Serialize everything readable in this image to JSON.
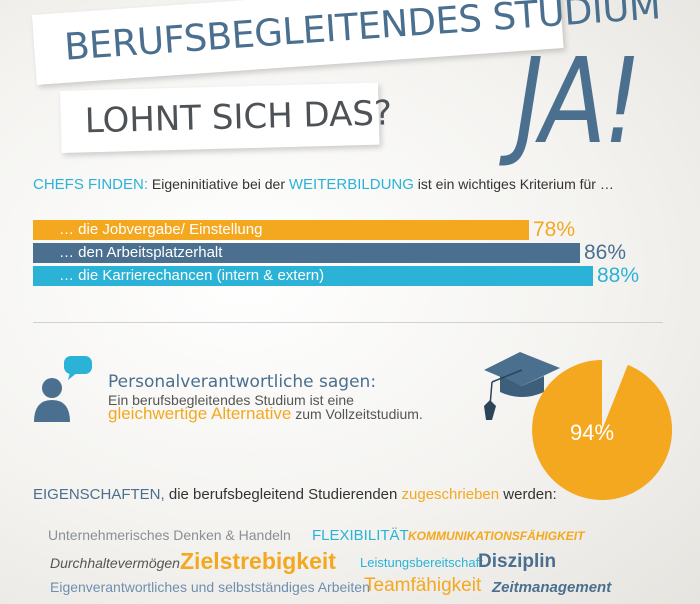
{
  "header": {
    "title_line1": "BERUFSBEGLEITENDES STUDIUM",
    "title_line2": "LOHNT SICH DAS?",
    "answer": "JA!"
  },
  "chefs": {
    "label": "CHEFS FINDEN:",
    "text1": " Eigeninitiative bei der ",
    "highlight": "WEITERBILDUNG",
    "text2": " ist ein wichtiges Kriterium für …"
  },
  "bars": [
    {
      "label": "… die Jobvergabe/ Einstellung",
      "value": 78,
      "value_label": "78%",
      "color": "#f4a81f"
    },
    {
      "label": "… den Arbeitsplatzerhalt",
      "value": 86,
      "value_label": "86%",
      "color": "#4a6f8f"
    },
    {
      "label": "… die Karrierechancen (intern & extern)",
      "value": 88,
      "value_label": "88%",
      "color": "#2ab3d6"
    }
  ],
  "statement": {
    "line1": "Personalverantwortliche sagen:",
    "line2": "Ein berufsbegleitendes Studium ist eine",
    "highlight": "gleichwertige Alternative",
    "line3": " zum Vollzeitstudium.",
    "pie_value": 94,
    "pie_label": "94%"
  },
  "eigenschaften": {
    "label": "EIGENSCHAFTEN,",
    "text1": " die berufsbegleitend Studierenden ",
    "highlight": "zugeschrieben",
    "text2": " werden:"
  },
  "words": [
    "Unternehmerisches Denken & Handeln",
    "FLEXIBILITÄT",
    "KOMMUNIKATIONSFÄHIGKEIT",
    "Durchhaltevermögen",
    "Zielstrebigkeit",
    "Leistungsbereitschaft",
    "Disziplin",
    "Eigenverantwortliches und selbstständiges Arbeiten",
    "Teamfähigkeit",
    "Zeitmanagement"
  ],
  "colors": {
    "orange": "#f4a81f",
    "slate": "#4a6f8f",
    "cyan": "#2ab3d6",
    "gray": "#7a8088"
  },
  "icons": [
    "person-icon",
    "speech-bubble-icon",
    "graduation-cap-icon"
  ]
}
